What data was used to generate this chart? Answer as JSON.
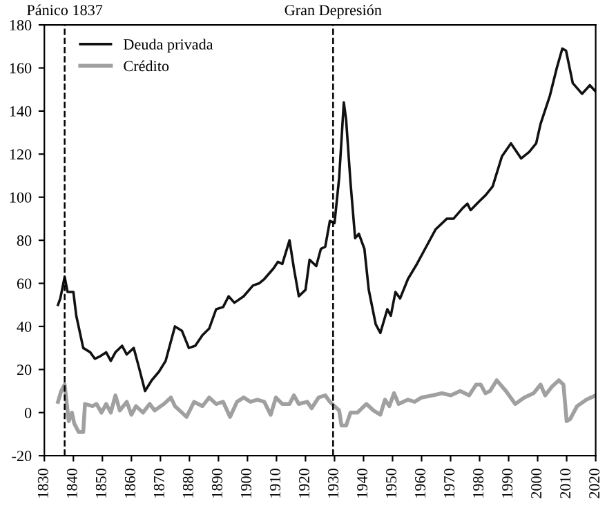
{
  "chart_data": {
    "type": "line",
    "xlim": [
      1830,
      2020
    ],
    "xticks": [
      1830,
      1840,
      1850,
      1860,
      1870,
      1880,
      1890,
      1900,
      1910,
      1920,
      1930,
      1940,
      1950,
      1960,
      1970,
      1980,
      1990,
      2000,
      2010,
      2020
    ],
    "ylim": [
      -20,
      180
    ],
    "yticks": [
      -20,
      0,
      20,
      40,
      60,
      80,
      100,
      120,
      140,
      160,
      180
    ],
    "grid": false,
    "legend": "top left",
    "line_style": "solid",
    "marker": "none",
    "ref_lines": [
      {
        "axis": "x",
        "value": 1837,
        "label": "Pánico 1837",
        "color": "#000000",
        "line_style": "dashed"
      },
      {
        "axis": "x",
        "value": 1929.5,
        "label": "Gran Depresión",
        "color": "#000000",
        "line_style": "dashed"
      }
    ],
    "series": [
      {
        "name": "Deuda privada",
        "color": "#111111",
        "x": [
          1834.7,
          1835.5,
          1837,
          1838,
          1840,
          1841,
          1843.4,
          1845.8,
          1847.4,
          1849,
          1851.3,
          1852.9,
          1854.5,
          1856.8,
          1858.4,
          1860.8,
          1862.4,
          1864.7,
          1867,
          1869.5,
          1871.8,
          1875,
          1877.4,
          1879.8,
          1882,
          1884.5,
          1886.8,
          1889.2,
          1891.6,
          1893.5,
          1895.5,
          1898.7,
          1901.9,
          1904,
          1905.8,
          1909,
          1910.5,
          1912,
          1914.5,
          1916,
          1917.7,
          1920,
          1921.4,
          1923.7,
          1925.3,
          1926.8,
          1928.4,
          1930,
          1931.6,
          1933.2,
          1934,
          1935.5,
          1937.1,
          1938.4,
          1940.3,
          1941.8,
          1944.2,
          1945.8,
          1948.2,
          1949.4,
          1951,
          1952.6,
          1955.3,
          1958.4,
          1961.6,
          1964.8,
          1968.7,
          1971,
          1974.2,
          1975.8,
          1976.9,
          1979.8,
          1982.1,
          1984.5,
          1987.7,
          1990.8,
          1994.3,
          1997.1,
          1999.5,
          2001,
          2004.2,
          2006.6,
          2008.5,
          2009.8,
          2012.1,
          2015.3,
          2018,
          2020
        ],
        "values": [
          50,
          53,
          63,
          56,
          56,
          45,
          30,
          28,
          25,
          26,
          28,
          24,
          28,
          31,
          27,
          30,
          22,
          10,
          15,
          19,
          24,
          40,
          38,
          30,
          31,
          36,
          39,
          48,
          49,
          54,
          51,
          54,
          59,
          60,
          62,
          67,
          70,
          69,
          80,
          67,
          54,
          57,
          71,
          68,
          76,
          77,
          89,
          88,
          109,
          144,
          136,
          107,
          81,
          83,
          76,
          57,
          41,
          37,
          48,
          45,
          56,
          53,
          62,
          69,
          77,
          85,
          90,
          90,
          95,
          97,
          94,
          98,
          101,
          105,
          119,
          125,
          118,
          121,
          125,
          134,
          147,
          160,
          169,
          168,
          153,
          148,
          152,
          149
        ]
      },
      {
        "name": "Crédito",
        "color": "#a0a0a0",
        "x": [
          1834.7,
          1835.8,
          1837,
          1838.4,
          1839.5,
          1840.3,
          1841.8,
          1843.4,
          1844,
          1846.6,
          1848,
          1849.7,
          1851.3,
          1852.9,
          1854.5,
          1856,
          1858.4,
          1860,
          1861.6,
          1864,
          1866.3,
          1868,
          1871.2,
          1873.6,
          1875,
          1877.4,
          1879,
          1881.6,
          1884.5,
          1886.8,
          1889.2,
          1891.6,
          1894,
          1896.4,
          1898.7,
          1901,
          1903.4,
          1905.8,
          1908,
          1909.8,
          1912,
          1914.5,
          1916,
          1917.7,
          1920.6,
          1922.1,
          1924.5,
          1926.8,
          1928.4,
          1930,
          1931.6,
          1932.4,
          1934,
          1935.5,
          1937.9,
          1941,
          1943.4,
          1945.8,
          1947.4,
          1948.9,
          1950.5,
          1952.1,
          1955.3,
          1957.6,
          1960,
          1963.9,
          1967,
          1970.1,
          1973.3,
          1976.4,
          1978.8,
          1980.4,
          1982,
          1983.6,
          1985.9,
          1989.1,
          1992.3,
          1995.4,
          1998.6,
          2001,
          2002.6,
          2004.9,
          2007.3,
          2008.9,
          2010,
          2011.2,
          2013.6,
          2016.8,
          2020
        ],
        "values": [
          5,
          10,
          13,
          -4,
          0,
          -5,
          -9,
          -9,
          4,
          3,
          4,
          0,
          4,
          0,
          8,
          1,
          5,
          -1,
          3,
          0,
          4,
          1,
          4,
          7,
          3,
          0,
          -2,
          5,
          3,
          7,
          4,
          5,
          -2,
          5,
          7,
          5,
          6,
          5,
          -1,
          7,
          4,
          4,
          8,
          4,
          5,
          2,
          7,
          8,
          5,
          3,
          1,
          -6,
          -6,
          0,
          0,
          4,
          1,
          -1,
          6,
          3,
          9,
          4,
          6,
          5,
          7,
          8,
          9,
          8,
          10,
          8,
          13,
          13,
          9,
          10,
          15,
          10,
          4,
          7,
          9,
          13,
          8,
          12,
          15,
          13,
          -4,
          -3,
          3,
          6,
          8
        ]
      }
    ]
  }
}
